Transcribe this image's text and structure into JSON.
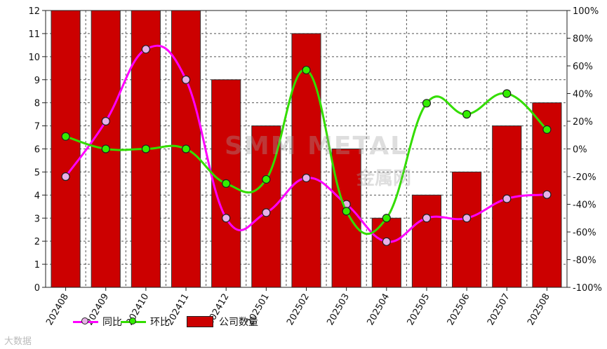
{
  "chart_data": {
    "type": "bar",
    "title": "",
    "categories": [
      "202408",
      "202409",
      "202410",
      "202411",
      "202412",
      "202501",
      "202502",
      "202503",
      "202504",
      "202505",
      "202506",
      "202507",
      "202508"
    ],
    "y_left": {
      "min": 0,
      "max": 12,
      "step": 1
    },
    "y_right": {
      "min": -100,
      "max": 100,
      "step": 20,
      "unit": "%"
    },
    "series": [
      {
        "name": "公司数量",
        "type": "bar",
        "axis": "left",
        "color": "#cc0000",
        "values": [
          12,
          12,
          12,
          12,
          9,
          7,
          11,
          6,
          3,
          4,
          5,
          7,
          8
        ]
      },
      {
        "name": "同比",
        "type": "line",
        "axis": "right",
        "color": "#ff00ff",
        "values": [
          -20,
          20,
          72,
          50,
          -50,
          -46,
          -21,
          -40,
          -67,
          -50,
          -50,
          -36,
          -33
        ]
      },
      {
        "name": "环比",
        "type": "line",
        "axis": "right",
        "color": "#33dd00",
        "values": [
          9,
          0,
          0,
          0,
          -25,
          -22,
          57,
          -45,
          -50,
          33,
          25,
          40,
          14
        ]
      }
    ],
    "grid": true,
    "legend_position": "bottom"
  },
  "watermark": {
    "text": "SMM METAL",
    "text2": "金属网"
  },
  "corner_logo": "大数据"
}
